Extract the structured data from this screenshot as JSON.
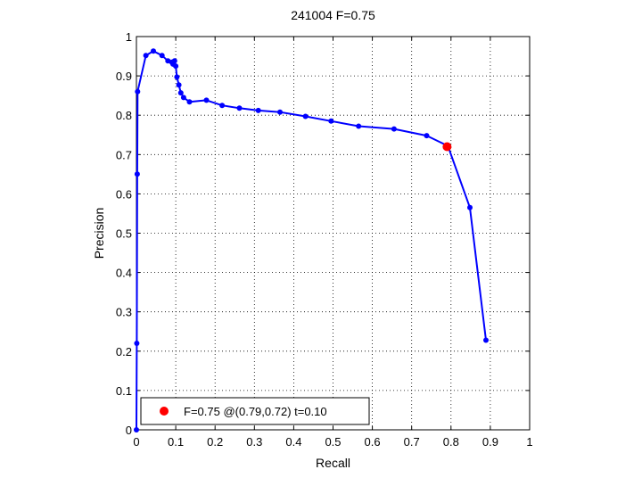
{
  "chart_data": {
    "type": "line",
    "title": "241004 F=0.75",
    "xlabel": "Recall",
    "ylabel": "Precision",
    "xlim": [
      0,
      1
    ],
    "ylim": [
      0,
      1
    ],
    "xticks": [
      0,
      0.1,
      0.2,
      0.3,
      0.4,
      0.5,
      0.6,
      0.7,
      0.8,
      0.9,
      1
    ],
    "yticks": [
      0,
      0.1,
      0.2,
      0.3,
      0.4,
      0.5,
      0.6,
      0.7,
      0.8,
      0.9,
      1
    ],
    "xtick_labels": [
      "0",
      "0.1",
      "0.2",
      "0.3",
      "0.4",
      "0.5",
      "0.6",
      "0.7",
      "0.8",
      "0.9",
      "1"
    ],
    "ytick_labels": [
      "0",
      "0.1",
      "0.2",
      "0.3",
      "0.4",
      "0.5",
      "0.6",
      "0.7",
      "0.8",
      "0.9",
      "1"
    ],
    "grid": true,
    "legend_position": "bottom-left",
    "series": [
      {
        "color": "#0000ff",
        "x": [
          0.889,
          0.848,
          0.792,
          0.738,
          0.655,
          0.565,
          0.495,
          0.43,
          0.365,
          0.31,
          0.262,
          0.218,
          0.178,
          0.135,
          0.12,
          0.113,
          0.108,
          0.103,
          0.1,
          0.097,
          0.093,
          0.09,
          0.08,
          0.065,
          0.043,
          0.024,
          0.003,
          0.002,
          0.001,
          0.0
        ],
        "y": [
          0.228,
          0.565,
          0.722,
          0.748,
          0.765,
          0.772,
          0.785,
          0.797,
          0.808,
          0.812,
          0.818,
          0.825,
          0.838,
          0.834,
          0.845,
          0.857,
          0.877,
          0.897,
          0.925,
          0.938,
          0.93,
          0.935,
          0.938,
          0.952,
          0.963,
          0.952,
          0.86,
          0.65,
          0.22,
          0.0
        ]
      }
    ],
    "highlight": {
      "label": "F=0.75 @(0.79,0.72) t=0.10",
      "x": 0.79,
      "y": 0.72,
      "color": "#ff0000"
    }
  }
}
